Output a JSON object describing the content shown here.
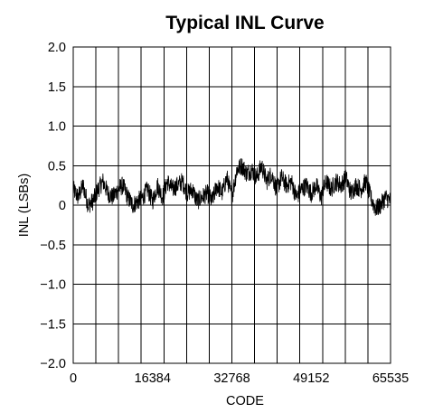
{
  "chart_data": {
    "type": "line",
    "title": "Typical INL Curve",
    "xlabel": "CODE",
    "ylabel": "INL (LSBs)",
    "xlim": [
      0,
      65535
    ],
    "ylim": [
      -2.0,
      2.0
    ],
    "x_tick_values": [
      0,
      16384,
      32768,
      49152,
      65535
    ],
    "x_tick_labels": [
      "0",
      "16384",
      "32768",
      "49152",
      "65535"
    ],
    "y_tick_values": [
      2.0,
      1.5,
      1.0,
      0.5,
      0,
      -0.5,
      -1.0,
      -1.5,
      -2.0
    ],
    "y_tick_labels": [
      "2.0",
      "1.5",
      "1.0",
      "0.5",
      "0",
      "−0.5",
      "−1.0",
      "−1.5",
      "−2.0"
    ],
    "vertical_grid_divisions": 14,
    "grid": true,
    "series": [
      {
        "x": [
          0,
          1024,
          2048,
          3072,
          4096,
          5120,
          6144,
          7168,
          8192,
          9216,
          10240,
          11264,
          12288,
          13312,
          14336,
          15360,
          16384,
          17408,
          18432,
          19456,
          20480,
          21504,
          22528,
          23552,
          24576,
          25600,
          26624,
          27648,
          28672,
          29696,
          30720,
          31744,
          32768,
          33792,
          34816,
          35840,
          36864,
          37888,
          38912,
          39936,
          40960,
          41984,
          43008,
          44032,
          45056,
          46080,
          47104,
          48128,
          49152,
          50176,
          51200,
          52224,
          53248,
          54272,
          55296,
          56320,
          57344,
          58368,
          59392,
          60416,
          61440,
          62464,
          63488,
          64512,
          65535
        ],
        "y": [
          0.2,
          0.1,
          0.25,
          0.0,
          0.05,
          0.2,
          0.3,
          0.15,
          0.1,
          0.2,
          0.25,
          0.1,
          0.0,
          0.05,
          0.1,
          0.2,
          0.05,
          0.25,
          0.1,
          0.3,
          0.2,
          0.25,
          0.3,
          0.15,
          0.2,
          0.05,
          0.1,
          0.15,
          0.05,
          0.25,
          0.15,
          0.35,
          0.1,
          0.45,
          0.5,
          0.4,
          0.45,
          0.35,
          0.5,
          0.3,
          0.4,
          0.2,
          0.35,
          0.25,
          0.3,
          0.1,
          0.2,
          0.25,
          0.15,
          0.25,
          0.1,
          0.3,
          0.2,
          0.3,
          0.25,
          0.35,
          0.15,
          0.25,
          0.2,
          0.3,
          0.1,
          -0.05,
          0.0,
          0.1,
          0.05
        ],
        "noise_amplitude": 0.12
      }
    ]
  }
}
